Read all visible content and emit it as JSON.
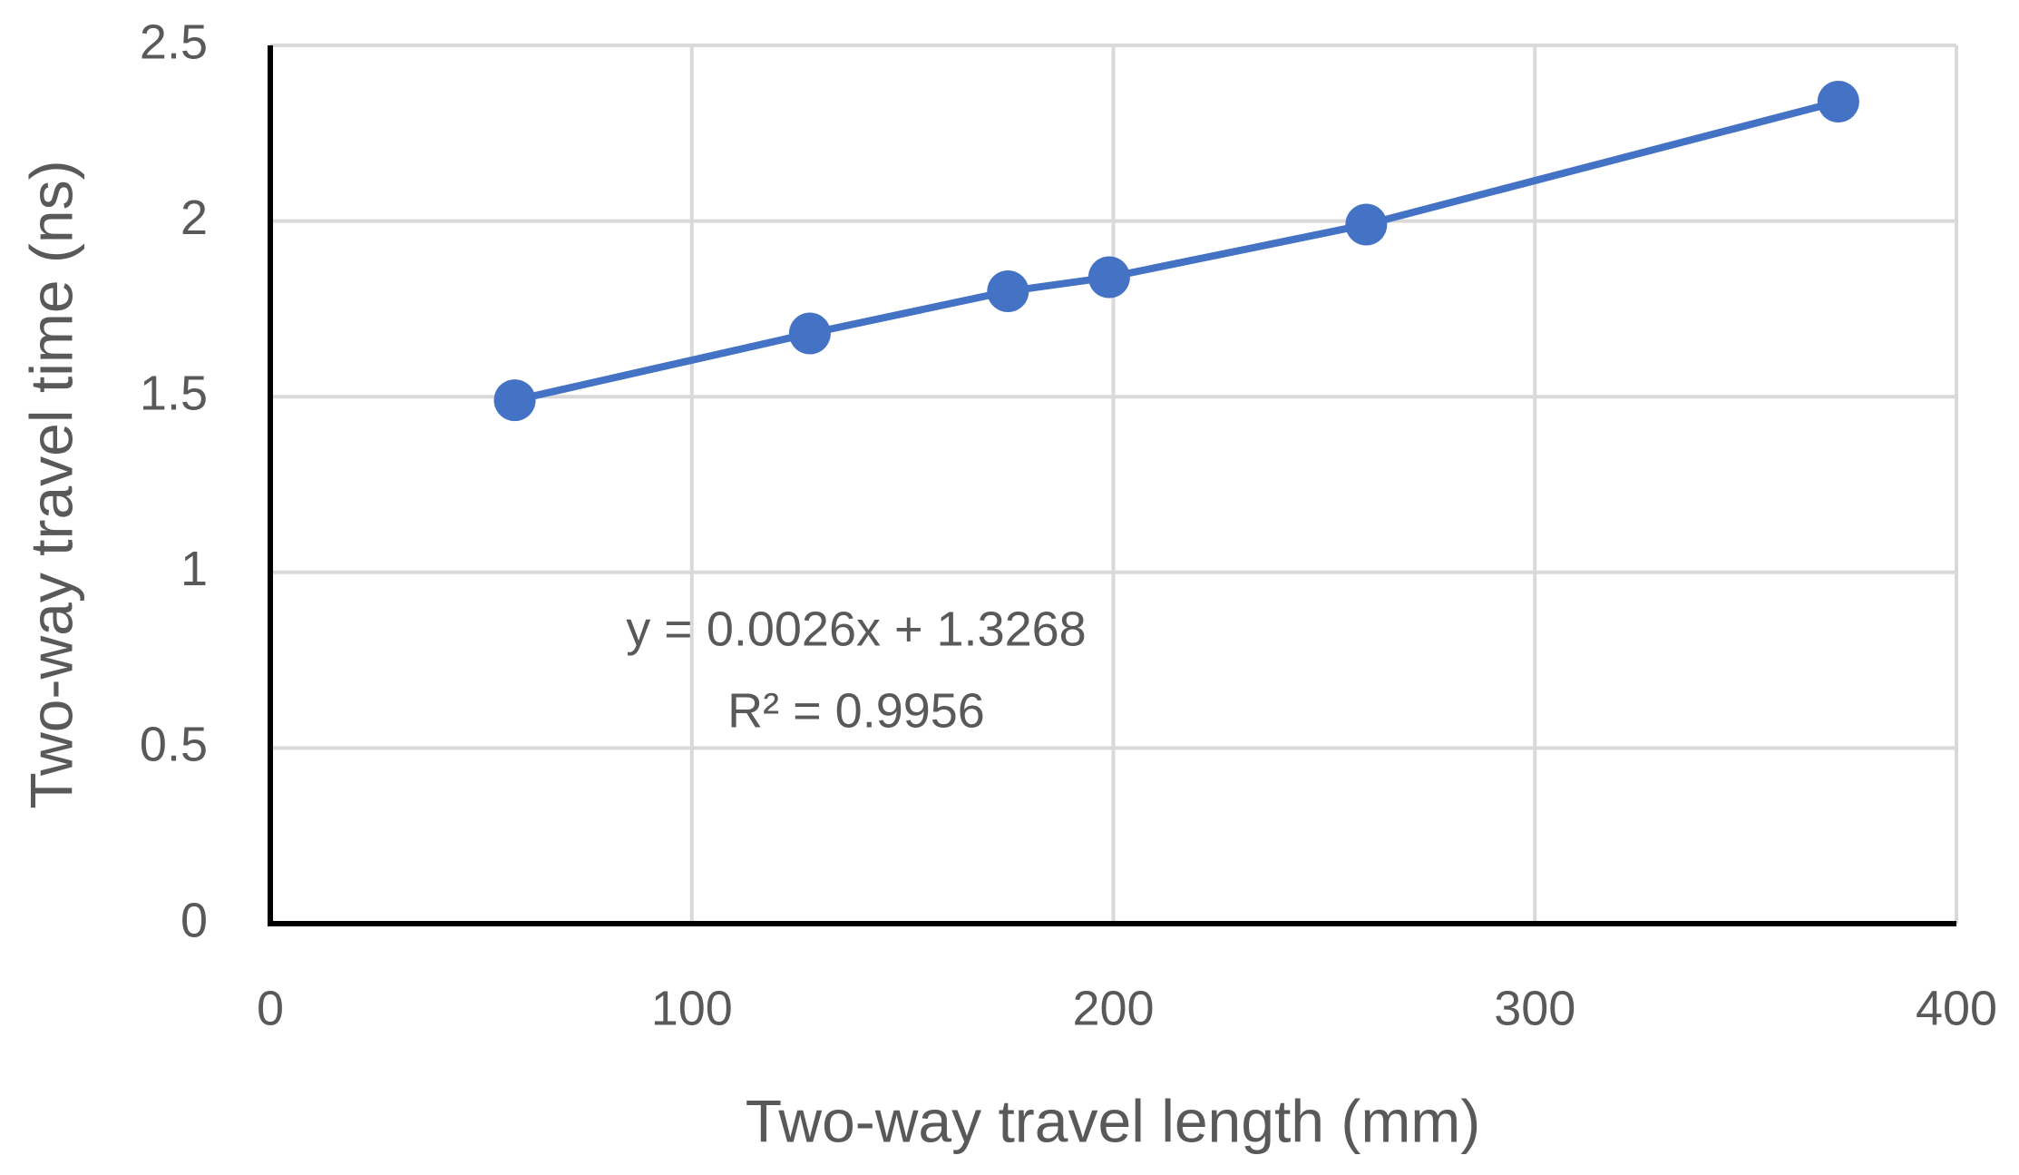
{
  "chart_data": {
    "type": "scatter",
    "x_label": "Two-way travel length (mm)",
    "y_label": "Two-way travel time (ns)",
    "annotations": [
      "y = 0.0026x + 1.3268",
      "R² = 0.9956"
    ],
    "series": [
      {
        "color": "#4472c4",
        "x": [
          58,
          128,
          175,
          199,
          260,
          372
        ],
        "values": [
          1.49,
          1.68,
          1.8,
          1.84,
          1.99,
          2.34
        ]
      }
    ],
    "xlim": [
      0,
      400
    ],
    "xticks": [
      0,
      100,
      200,
      300,
      400
    ],
    "ylim": [
      0,
      2.5
    ],
    "yticks": [
      0,
      0.5,
      1,
      1.5,
      2,
      2.5
    ],
    "grid": true
  }
}
